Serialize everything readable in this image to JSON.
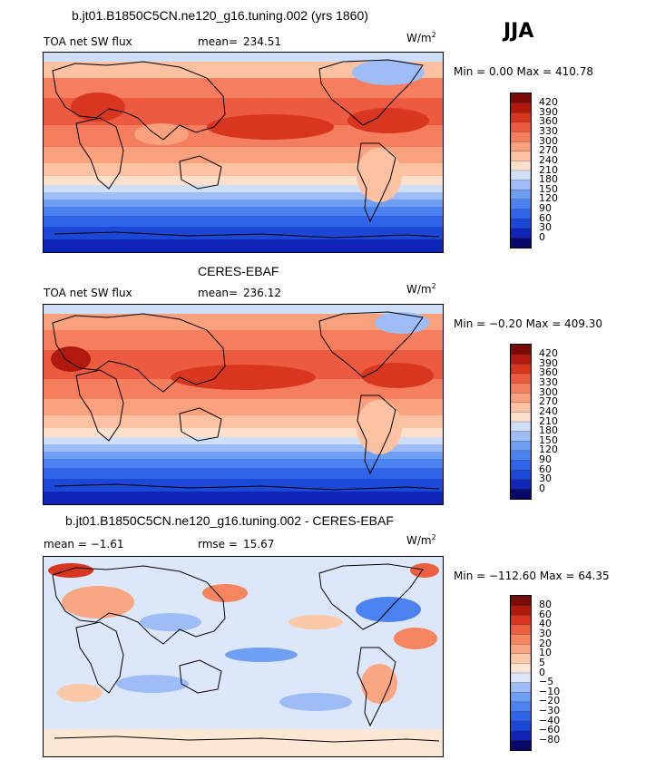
{
  "season": "JJA",
  "panels": [
    {
      "title": "b.jt01.B1850C5CN.ne120_g16.tuning.002 (yrs 1860)",
      "left_label": "TOA net SW flux",
      "stat_label": "mean=",
      "stat_value": "234.51",
      "units_base": "W/m",
      "units_sup": "2",
      "minmax": "Min =   0.00 Max = 410.78",
      "colorbar_labels": [
        "420",
        "390",
        "360",
        "330",
        "300",
        "270",
        "240",
        "210",
        "180",
        "150",
        "120",
        "90",
        "60",
        "30",
        "0"
      ]
    },
    {
      "title": "CERES-EBAF",
      "left_label": "TOA net SW flux",
      "stat_label": "mean=",
      "stat_value": "236.12",
      "units_base": "W/m",
      "units_sup": "2",
      "minmax": "Min =  −0.20 Max = 409.30",
      "colorbar_labels": [
        "420",
        "390",
        "360",
        "330",
        "300",
        "270",
        "240",
        "210",
        "180",
        "150",
        "120",
        "90",
        "60",
        "30",
        "0"
      ]
    },
    {
      "title": "b.jt01.B1850C5CN.ne120_g16.tuning.002 - CERES-EBAF",
      "left_label": "mean =   −1.61",
      "stat_label": "rmse =",
      "stat_value": "15.67",
      "units_base": "W/m",
      "units_sup": "2",
      "minmax": "Min = −112.60 Max =  64.35",
      "colorbar_labels": [
        "80",
        "60",
        "40",
        "30",
        "20",
        "10",
        "5",
        "0",
        "−5",
        "−10",
        "−20",
        "−30",
        "−40",
        "−60",
        "−80"
      ]
    }
  ],
  "chart_data": [
    {
      "type": "heatmap",
      "title": "b.jt01.B1850C5CN.ne120_g16.tuning.002 (yrs 1860)",
      "variable": "TOA net SW flux",
      "units": "W/m2",
      "mean": 234.51,
      "min": 0.0,
      "max": 410.78,
      "levels": [
        0,
        30,
        60,
        90,
        120,
        150,
        180,
        210,
        240,
        270,
        300,
        330,
        360,
        390,
        420
      ],
      "colors": [
        "#08086a",
        "#0f25b8",
        "#1b48d6",
        "#2f63e8",
        "#4c82ef",
        "#6f9ff2",
        "#9ebcf5",
        "#cfdff8",
        "#fce0cb",
        "#fbc1a1",
        "#f9a07c",
        "#f47e5d",
        "#ec5b3f",
        "#d8361f",
        "#b01a0e",
        "#7a0a07"
      ]
    },
    {
      "type": "heatmap",
      "title": "CERES-EBAF",
      "variable": "TOA net SW flux",
      "units": "W/m2",
      "mean": 236.12,
      "min": -0.2,
      "max": 409.3,
      "levels": [
        0,
        30,
        60,
        90,
        120,
        150,
        180,
        210,
        240,
        270,
        300,
        330,
        360,
        390,
        420
      ],
      "colors": [
        "#08086a",
        "#0f25b8",
        "#1b48d6",
        "#2f63e8",
        "#4c82ef",
        "#6f9ff2",
        "#9ebcf5",
        "#cfdff8",
        "#fce0cb",
        "#fbc1a1",
        "#f9a07c",
        "#f47e5d",
        "#ec5b3f",
        "#d8361f",
        "#b01a0e",
        "#7a0a07"
      ]
    },
    {
      "type": "heatmap",
      "title": "b.jt01.B1850C5CN.ne120_g16.tuning.002 - CERES-EBAF",
      "variable": "TOA net SW flux",
      "units": "W/m2",
      "mean": -1.61,
      "rmse": 15.67,
      "min": -112.6,
      "max": 64.35,
      "levels": [
        -80,
        -60,
        -40,
        -30,
        -20,
        -10,
        -5,
        0,
        5,
        10,
        20,
        30,
        40,
        60,
        80
      ],
      "colors": [
        "#08086a",
        "#0f25b8",
        "#1b48d6",
        "#2f63e8",
        "#4c82ef",
        "#6f9ff2",
        "#9ebcf5",
        "#dce8fa",
        "#fce6d4",
        "#fbc9a8",
        "#f9a782",
        "#f4855f",
        "#ec603f",
        "#d8361f",
        "#b01a0e",
        "#7a0a07"
      ]
    }
  ]
}
